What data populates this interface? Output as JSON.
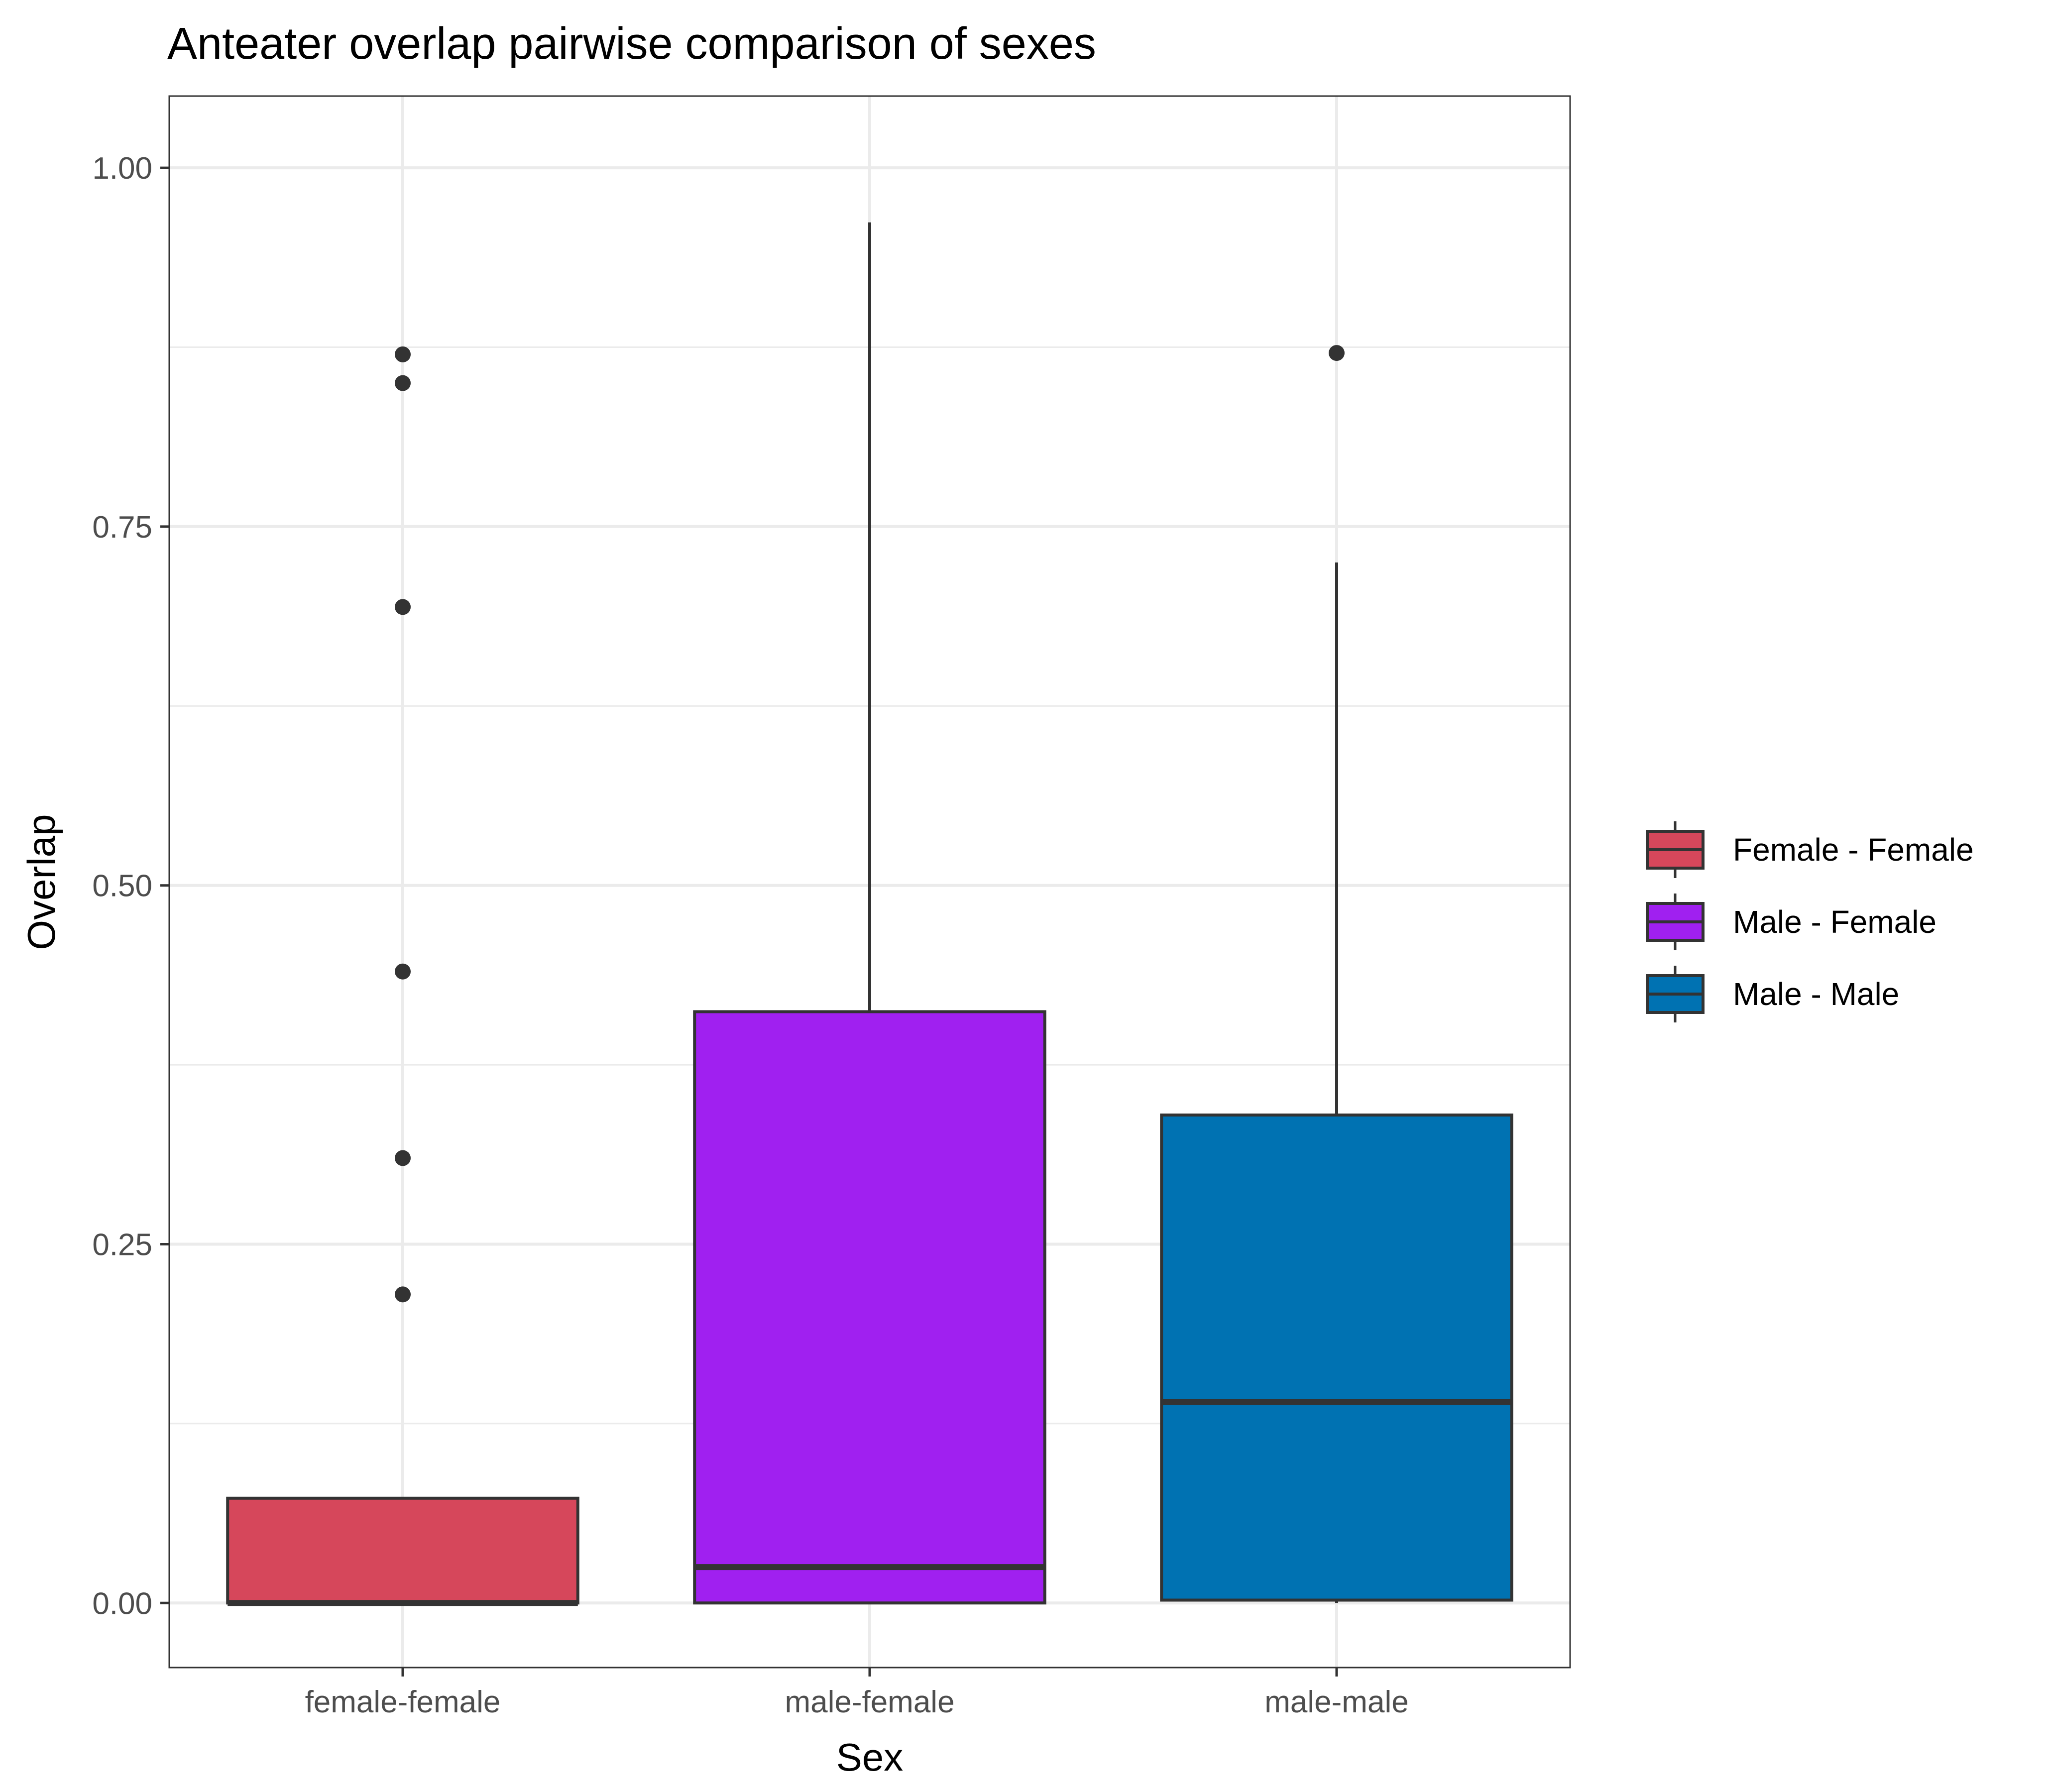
{
  "chart_data": {
    "type": "boxplot",
    "title": "Anteater overlap pairwise comparison of sexes",
    "xlabel": "Sex",
    "ylabel": "Overlap",
    "ylim": [
      -0.045,
      1.05
    ],
    "yticks": [
      0.0,
      0.25,
      0.5,
      0.75,
      1.0
    ],
    "ytick_labels": [
      "0.00",
      "0.25",
      "0.50",
      "0.75",
      "1.00"
    ],
    "categories": [
      "female-female",
      "male-female",
      "male-male"
    ],
    "grid": true,
    "legend": {
      "position": "right",
      "entries": [
        "Female - Female",
        "Male - Female",
        "Male - Male"
      ]
    },
    "series": [
      {
        "category": "female-female",
        "legend": "Female - Female",
        "color": "#D6475B",
        "whisker_low": 0.0,
        "q1": 0.0,
        "median": 0.0,
        "q3": 0.073,
        "whisker_high": 0.073,
        "outliers": [
          0.215,
          0.31,
          0.44,
          0.694,
          0.85,
          0.87
        ]
      },
      {
        "category": "male-female",
        "legend": "Male - Female",
        "color": "#A020F0",
        "whisker_low": 0.0,
        "q1": 0.0,
        "median": 0.025,
        "q3": 0.412,
        "whisker_high": 0.962,
        "outliers": []
      },
      {
        "category": "male-male",
        "legend": "Male - Male",
        "color": "#0072B2",
        "whisker_low": 0.0,
        "q1": 0.002,
        "median": 0.14,
        "q3": 0.34,
        "whisker_high": 0.725,
        "outliers": [
          0.871
        ]
      }
    ]
  }
}
